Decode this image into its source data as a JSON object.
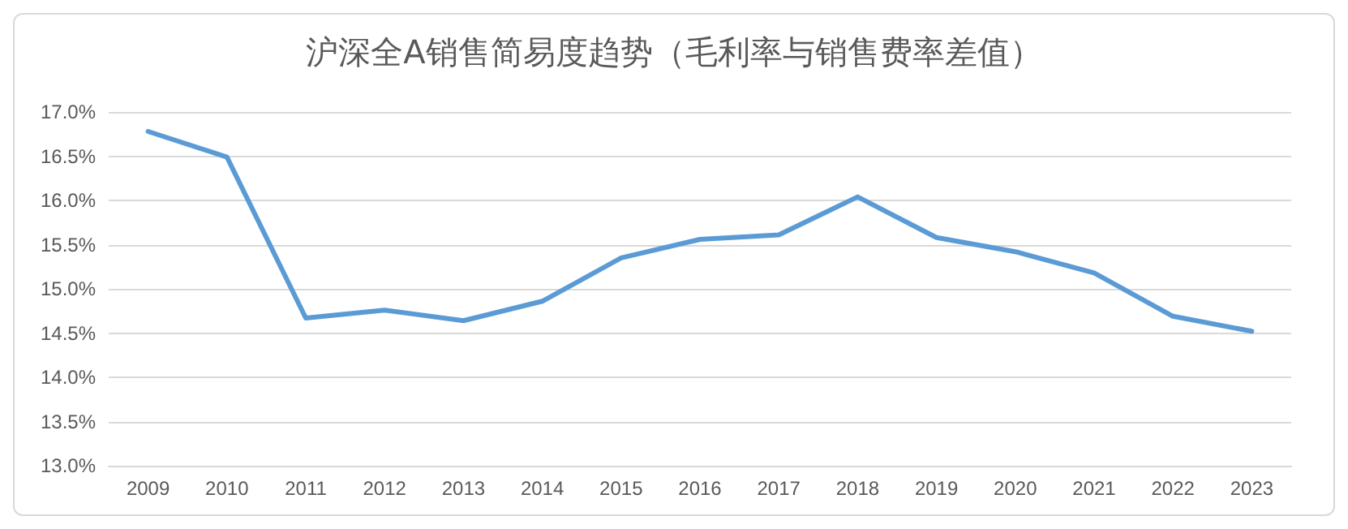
{
  "chart_data": {
    "type": "line",
    "title": "沪深全A销售简易度趋势（毛利率与销售费率差值）",
    "categories": [
      "2009",
      "2010",
      "2011",
      "2012",
      "2013",
      "2014",
      "2015",
      "2016",
      "2017",
      "2018",
      "2019",
      "2020",
      "2021",
      "2022",
      "2023"
    ],
    "series": [
      {
        "color": "#5b9bd5",
        "values": [
          16.78,
          16.49,
          14.67,
          14.76,
          14.64,
          14.86,
          15.35,
          15.56,
          15.61,
          16.04,
          15.58,
          15.42,
          15.18,
          14.69,
          14.52
        ]
      }
    ],
    "ylim": [
      13,
      17
    ],
    "yticks": [
      {
        "value": 13,
        "label": "13.0%"
      },
      {
        "value": 13.5,
        "label": "13.5%"
      },
      {
        "value": 14,
        "label": "14.0%"
      },
      {
        "value": 14.5,
        "label": "14.5%"
      },
      {
        "value": 15,
        "label": "15.0%"
      },
      {
        "value": 15.5,
        "label": "15.5%"
      },
      {
        "value": 16,
        "label": "16.0%"
      },
      {
        "value": 16.5,
        "label": "16.5%"
      },
      {
        "value": 17,
        "label": "17.0%"
      }
    ],
    "grid": "y",
    "marker": "none",
    "line_style": "solid"
  }
}
